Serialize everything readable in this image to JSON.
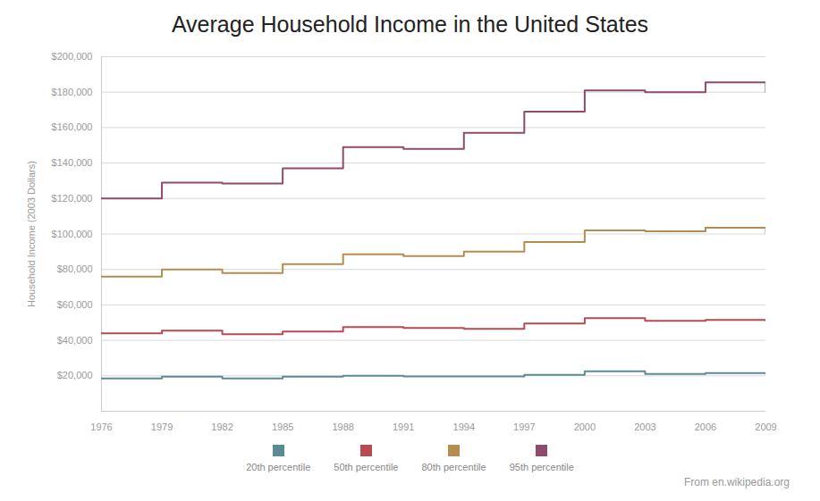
{
  "chart_data": {
    "type": "line",
    "line_style": "step",
    "title": "Average Household Income in the United States",
    "y_label": "Household Income (2003 Dollars)",
    "source": "From en.wikipedia.org",
    "x": [
      1976,
      1979,
      1982,
      1985,
      1988,
      1991,
      1994,
      1997,
      2000,
      2003,
      2006,
      2009
    ],
    "xlim": [
      1976,
      2009
    ],
    "xticks": [
      1976,
      1979,
      1982,
      1985,
      1988,
      1991,
      1994,
      1997,
      2000,
      2003,
      2006,
      2009
    ],
    "ylim": [
      0,
      200000
    ],
    "yticks": [
      {
        "value": 20000,
        "label": "$20,000"
      },
      {
        "value": 40000,
        "label": "$40,000"
      },
      {
        "value": 60000,
        "label": "$60,000"
      },
      {
        "value": 80000,
        "label": "$80,000"
      },
      {
        "value": 100000,
        "label": "$100,000"
      },
      {
        "value": 120000,
        "label": "$120,000"
      },
      {
        "value": 140000,
        "label": "$140,000"
      },
      {
        "value": 160000,
        "label": "$160,000"
      },
      {
        "value": 180000,
        "label": "$180,000"
      },
      {
        "value": 200000,
        "label": "$200,000"
      }
    ],
    "grid": true,
    "legend": "bottom",
    "series": [
      {
        "name": "20th percentile",
        "color": "#5b8b97",
        "values": [
          18500,
          19500,
          18500,
          19500,
          20000,
          19700,
          19700,
          20500,
          22500,
          21000,
          21500,
          21000
        ]
      },
      {
        "name": "50th percentile",
        "color": "#b94a4f",
        "values": [
          44000,
          45500,
          43500,
          45000,
          47500,
          47000,
          46500,
          49500,
          52500,
          51000,
          51500,
          51000
        ]
      },
      {
        "name": "80th percentile",
        "color": "#b58d4f",
        "values": [
          76000,
          80000,
          78000,
          83000,
          88500,
          87500,
          90000,
          95500,
          102000,
          101500,
          103500,
          100500
        ]
      },
      {
        "name": "95th percentile",
        "color": "#8e4b6b",
        "values": [
          120000,
          129000,
          128500,
          137000,
          149000,
          148000,
          157000,
          169000,
          181000,
          180000,
          185500,
          180000
        ]
      }
    ]
  }
}
